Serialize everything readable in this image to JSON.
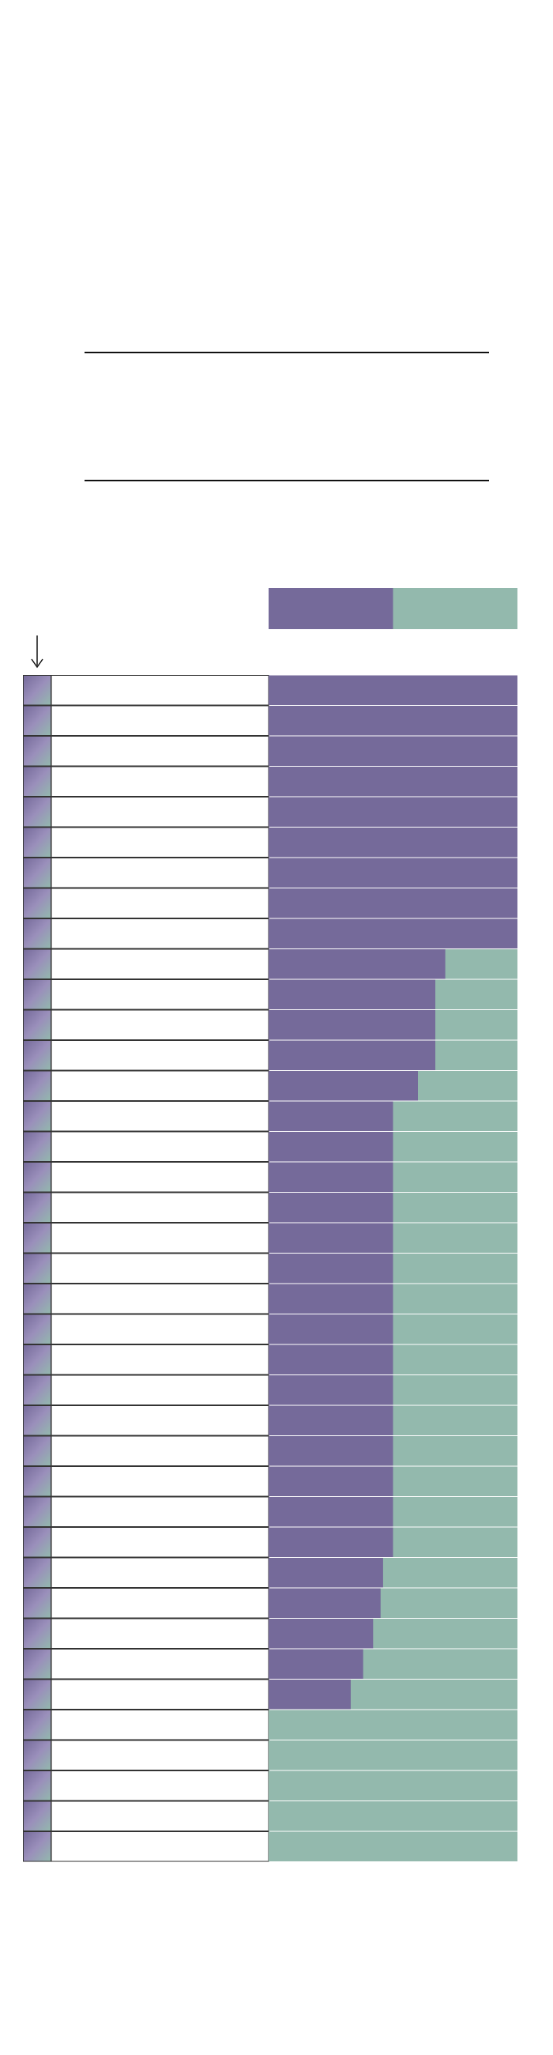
{
  "table": {
    "xlim": [
      0,
      100
    ],
    "colors": [
      "#756a9a",
      "#93b9ad"
    ],
    "shares": [
      100,
      100,
      100,
      100,
      100,
      100,
      100,
      100,
      100,
      71,
      67,
      67,
      67,
      60,
      50,
      50,
      50,
      50,
      50,
      50,
      50,
      50,
      50,
      50,
      50,
      50,
      50,
      50,
      50,
      46,
      45,
      42,
      38,
      33,
      0,
      0,
      0,
      0,
      0
    ]
  }
}
